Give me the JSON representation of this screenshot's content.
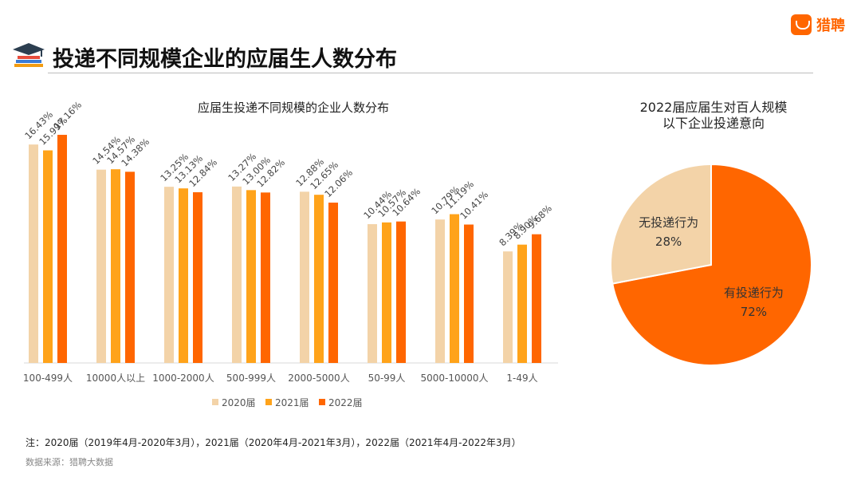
{
  "brand": {
    "name": "猎聘",
    "accent": "#ff6600"
  },
  "page_title": "投递不同规模企业的应届生人数分布",
  "chart_data": [
    {
      "type": "bar",
      "title": "应届生投递不同规模的企业人数分布",
      "categories": [
        "100-499人",
        "10000人以上",
        "1000-2000人",
        "500-999人",
        "2000-5000人",
        "50-99人",
        "5000-10000人",
        "1-49人"
      ],
      "series": [
        {
          "name": "2020届",
          "color": "#f3d3a8",
          "values": [
            16.43,
            14.54,
            13.25,
            13.27,
            12.88,
            10.44,
            10.79,
            8.39
          ]
        },
        {
          "name": "2021届",
          "color": "#ffa31a",
          "values": [
            15.99,
            14.57,
            13.13,
            13.0,
            12.65,
            10.57,
            11.19,
            8.9
          ]
        },
        {
          "name": "2022届",
          "color": "#ff6600",
          "values": [
            17.16,
            14.38,
            12.84,
            12.82,
            12.06,
            10.64,
            10.41,
            9.68
          ]
        }
      ],
      "value_suffix": "%",
      "ylim": [
        0,
        18
      ],
      "grid": false,
      "legend_position": "bottom"
    },
    {
      "type": "pie",
      "title_lines": [
        "2022届应届生对百人规模",
        "以下企业投递意向"
      ],
      "slices": [
        {
          "label": "有投递行为",
          "value": 72,
          "display": "72%",
          "color": "#ff6600"
        },
        {
          "label": "无投递行为",
          "value": 28,
          "display": "28%",
          "color": "#f3d3a8"
        }
      ]
    }
  ],
  "footnote": "注：2020届（2019年4月-2020年3月），2021届（2020年4月-2021年3月），2022届（2021年4月-2022年3月）",
  "source": "数据来源：猎聘大数据"
}
